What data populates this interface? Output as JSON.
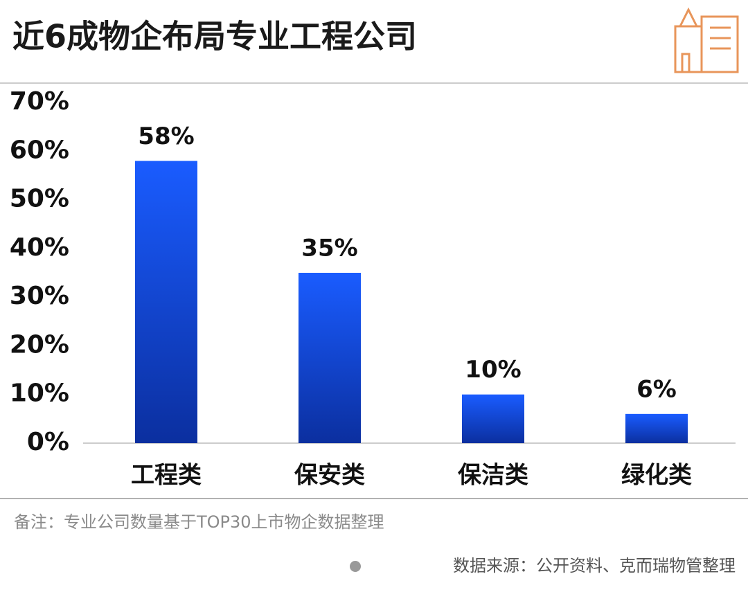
{
  "chart_data": {
    "type": "bar",
    "title": "近6成物企布局专业工程公司",
    "categories": [
      "工程类",
      "保安类",
      "保洁类",
      "绿化类"
    ],
    "values": [
      58,
      35,
      10,
      6
    ],
    "value_labels": [
      "58%",
      "35%",
      "10%",
      "6%"
    ],
    "ylim": [
      0,
      70
    ],
    "yticks": [
      {
        "value": 0,
        "label": "0%"
      },
      {
        "value": 10,
        "label": "10%"
      },
      {
        "value": 20,
        "label": "20%"
      },
      {
        "value": 30,
        "label": "30%"
      },
      {
        "value": 40,
        "label": "40%"
      },
      {
        "value": 50,
        "label": "50%"
      },
      {
        "value": 60,
        "label": "60%"
      },
      {
        "value": 70,
        "label": "70%"
      }
    ],
    "note": "备注：专业公司数量基于TOP30上市物企数据整理",
    "source": "数据来源：公开资料、克而瑞物管整理"
  }
}
